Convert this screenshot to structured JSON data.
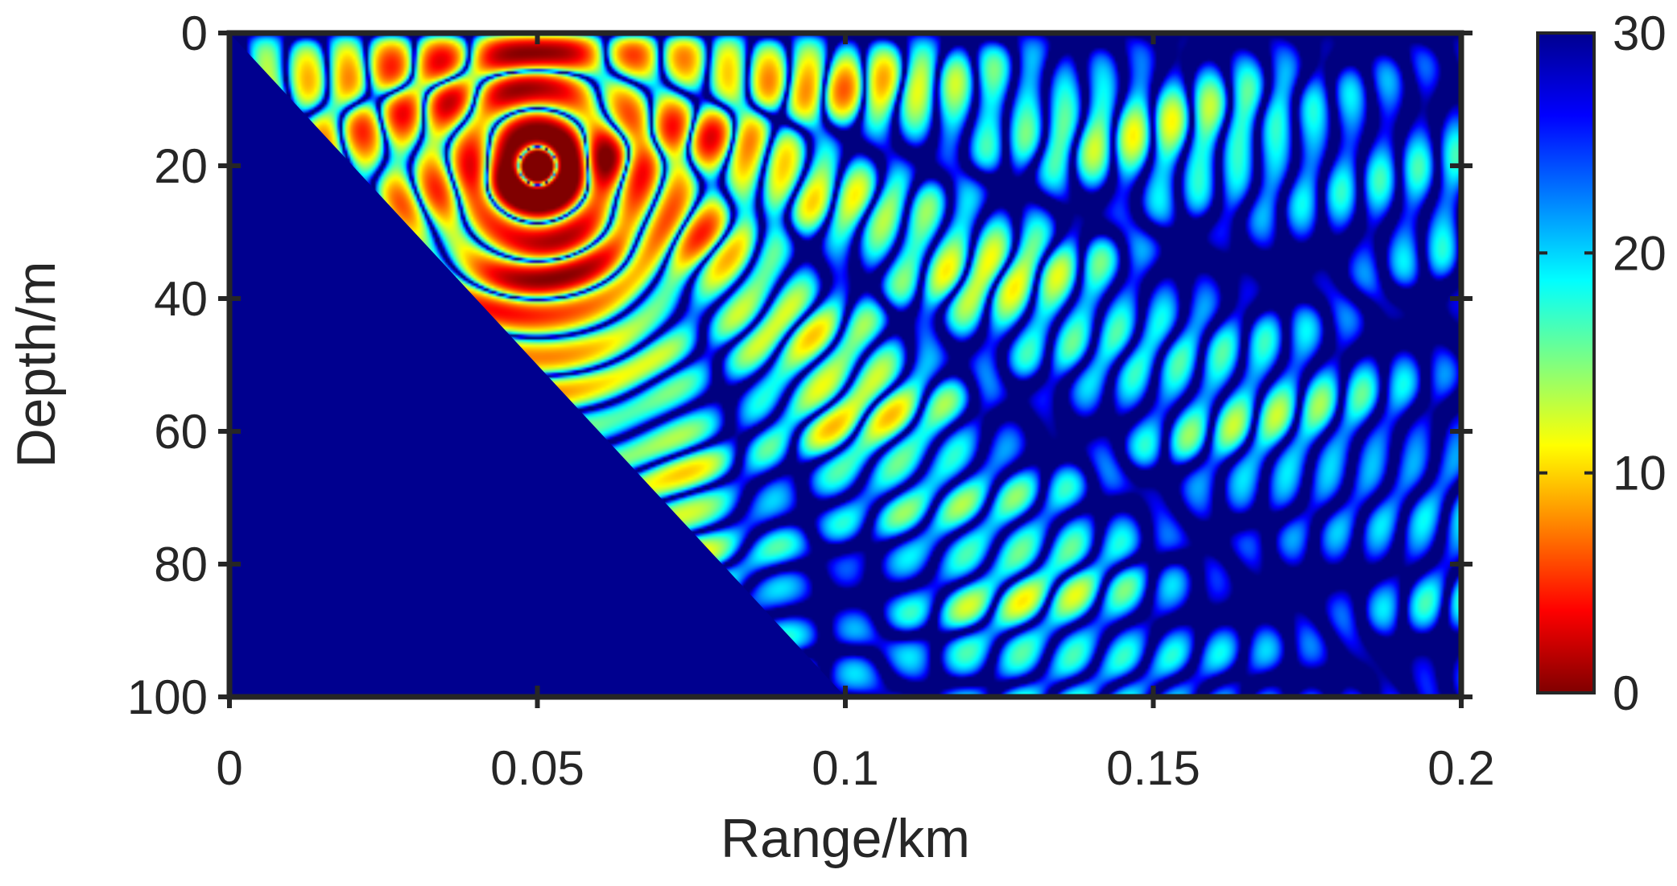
{
  "chart_data": {
    "type": "heatmap",
    "title": "",
    "xlabel": "Range/km",
    "ylabel": "Depth/m",
    "xlim": [
      0,
      0.2
    ],
    "ylim": [
      0,
      100
    ],
    "y_reversed": true,
    "x_ticks": [
      {
        "value": 0,
        "label": "0"
      },
      {
        "value": 0.05,
        "label": "0.05"
      },
      {
        "value": 0.1,
        "label": "0.1"
      },
      {
        "value": 0.15,
        "label": "0.15"
      },
      {
        "value": 0.2,
        "label": "0.2"
      }
    ],
    "y_ticks": [
      {
        "value": 0,
        "label": "0"
      },
      {
        "value": 20,
        "label": "20"
      },
      {
        "value": 40,
        "label": "40"
      },
      {
        "value": 60,
        "label": "60"
      },
      {
        "value": 80,
        "label": "80"
      },
      {
        "value": 100,
        "label": "100"
      }
    ],
    "colorbar": {
      "colormap": "jet-reversed",
      "clim": [
        0,
        30
      ],
      "ticks": [
        {
          "value": 0,
          "label": "0"
        },
        {
          "value": 10,
          "label": "10"
        },
        {
          "value": 20,
          "label": "20"
        },
        {
          "value": 30,
          "label": "30"
        }
      ]
    },
    "bottom_boundary": {
      "description_value": "sloping seabed",
      "points": [
        [
          0,
          0
        ],
        [
          0.1,
          100
        ]
      ],
      "fill_value": 30
    },
    "source": {
      "range_km": 0.05,
      "depth_m": 20
    },
    "grid": false
  },
  "colors": {
    "axis": "#262626",
    "sediment": "#00008f",
    "background": "#ffffff"
  }
}
